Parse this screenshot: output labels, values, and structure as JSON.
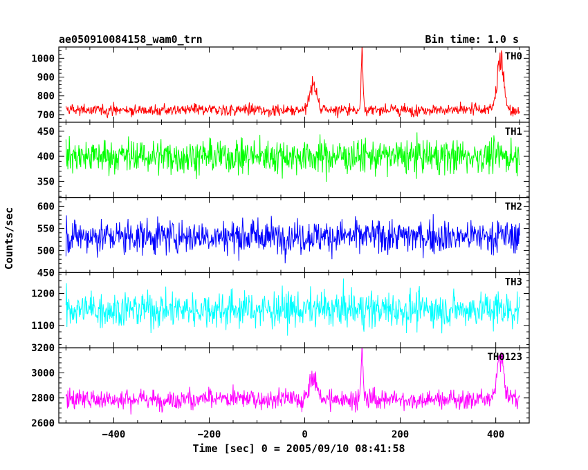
{
  "chart_data": {
    "type": "line",
    "title_left": "ae050910084158_wam0_trn",
    "title_right": "Bin time: 1.0 s",
    "xlabel": "Time [sec] 0 = 2005/09/10 08:41:58",
    "ylabel": "Counts/sec",
    "xlim": [
      -515,
      470
    ],
    "x_range_data": [
      -500,
      450
    ],
    "xticks": [
      -400,
      -200,
      0,
      200,
      400
    ],
    "panels": [
      {
        "name": "TH0",
        "color": "#ff0000",
        "ylim": [
          660,
          1060
        ],
        "yticks": [
          700,
          800,
          900,
          1000
        ],
        "baseline": 725,
        "noise": 22,
        "features": [
          {
            "center": 18,
            "width": 7,
            "height": 140
          },
          {
            "center": 120,
            "width": 2,
            "height": 310
          },
          {
            "center": 410,
            "width": 7,
            "height": 260
          }
        ]
      },
      {
        "name": "TH1",
        "color": "#00ff00",
        "ylim": [
          318,
          468
        ],
        "yticks": [
          350,
          400,
          450
        ],
        "baseline": 400,
        "noise": 24,
        "features": []
      },
      {
        "name": "TH2",
        "color": "#0000ff",
        "ylim": [
          450,
          620
        ],
        "yticks": [
          450,
          500,
          550,
          600
        ],
        "baseline": 532,
        "noise": 27,
        "features": []
      },
      {
        "name": "TH3",
        "color": "#00ffff",
        "ylim": [
          1030,
          1265
        ],
        "yticks": [
          1100,
          1200
        ],
        "baseline": 1150,
        "noise": 40,
        "features": []
      },
      {
        "name": "TH0123",
        "color": "#ff00ff",
        "ylim": [
          2600,
          3200
        ],
        "yticks": [
          2600,
          2800,
          3000,
          3200
        ],
        "baseline": 2790,
        "noise": 55,
        "features": [
          {
            "center": 18,
            "width": 7,
            "height": 180
          },
          {
            "center": 120,
            "width": 2,
            "height": 370
          },
          {
            "center": 410,
            "width": 7,
            "height": 320
          }
        ]
      }
    ]
  }
}
